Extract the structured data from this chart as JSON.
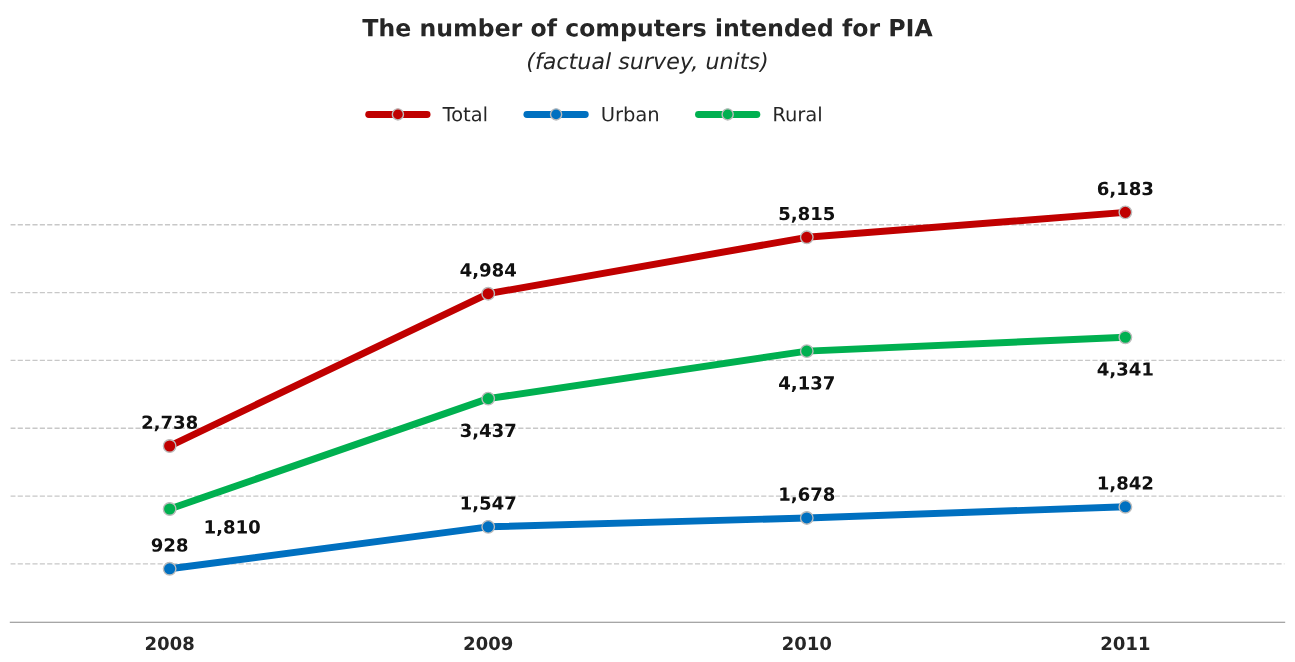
{
  "chart_data": {
    "type": "line",
    "title": "The number of computers intended for PIA",
    "subtitle": "(factual survey, units)",
    "categories": [
      "2008",
      "2009",
      "2010",
      "2011"
    ],
    "series": [
      {
        "name": "Total",
        "color": "#c00000",
        "values": [
          2738,
          4984,
          5815,
          6183
        ],
        "value_labels": [
          "2,738",
          "4,984",
          "5,815",
          "6,183"
        ]
      },
      {
        "name": "Urban",
        "color": "#0070c0",
        "values": [
          928,
          1547,
          1678,
          1842
        ],
        "value_labels": [
          "928",
          "1,547",
          "1,678",
          "1,842"
        ]
      },
      {
        "name": "Rural",
        "color": "#00b050",
        "values": [
          1810,
          3437,
          4137,
          4341
        ],
        "value_labels": [
          "1,810",
          "3,437",
          "4,137",
          "4,341"
        ]
      }
    ],
    "tick_labels": "x",
    "grid": "y",
    "legend": "top",
    "marker": "circle",
    "line_style": "solid"
  }
}
